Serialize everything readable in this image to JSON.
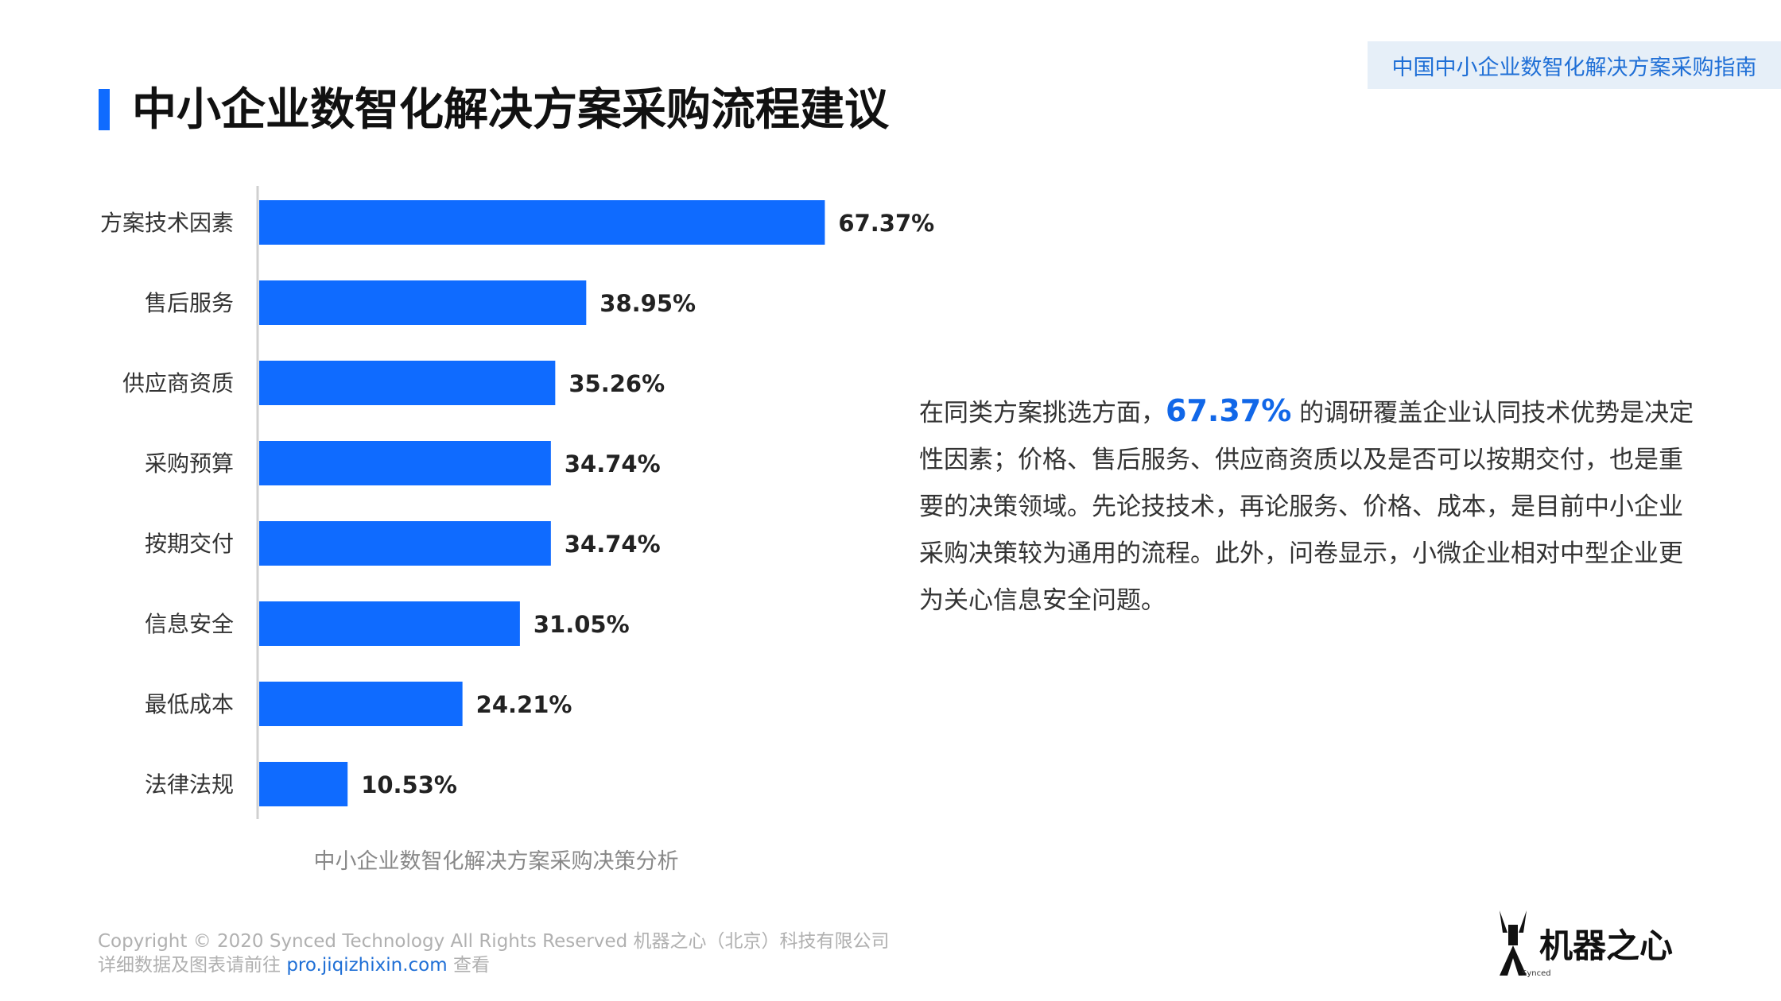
{
  "header": {
    "tag": "中国中小企业数智化解决方案采购指南",
    "title": "中小企业数智化解决方案采购流程建议"
  },
  "chart_data": {
    "type": "bar",
    "orientation": "horizontal",
    "categories": [
      "方案技术因素",
      "售后服务",
      "供应商资质",
      "采购预算",
      "按期交付",
      "信息安全",
      "最低成本",
      "法律法规"
    ],
    "values": [
      67.37,
      38.95,
      35.26,
      34.74,
      34.74,
      31.05,
      24.21,
      10.53
    ],
    "value_labels": [
      "67.37%",
      "38.95%",
      "35.26%",
      "34.74%",
      "34.74%",
      "31.05%",
      "24.21%",
      "10.53%"
    ],
    "unit": "%",
    "xlim": [
      0,
      100
    ],
    "bar_color": "#0f6bff",
    "title": "中小企业数智化解决方案采购决策分析",
    "xlabel": "",
    "ylabel": ""
  },
  "description": {
    "part1": "在同类方案挑选方面，",
    "highlight": "67.37%",
    "part2": " 的调研覆盖企业认同技术优势是决定性因素；价格、售后服务、供应商资质以及是否可以按期交付，也是重要的决策领域。先论技技术，再论服务、价格、成本，是目前中小企业采购决策较为通用的流程。此外，问卷显示，小微企业相对中型企业更为关心信息安全问题。"
  },
  "footer": {
    "copyright": "Copyright © 2020 Synced Technology All Rights Reserved 机器之心（北京）科技有限公司",
    "detail_prefix": "详细数据及图表请前往 ",
    "link": "pro.jiqizhixin.com",
    "detail_suffix": " 查看"
  },
  "logo": {
    "text": "机器之心",
    "sub": "Synced"
  }
}
